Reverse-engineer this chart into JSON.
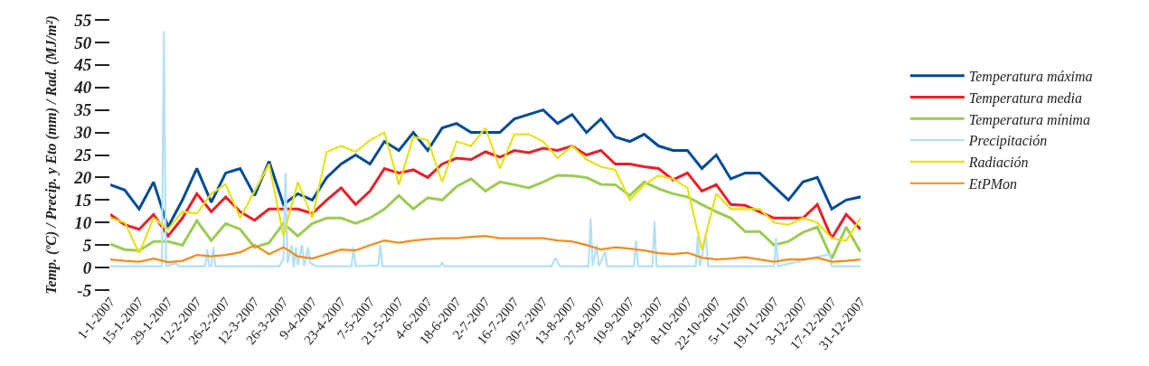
{
  "chart_data": {
    "type": "line",
    "ylabel": "Temp. (ºC) / Precip. y Eto (mm) / Rad. (MJ/m²)",
    "x": [
      "2007-01-01",
      "2007-01-08",
      "2007-01-15",
      "2007-01-22",
      "2007-01-29",
      "2007-02-05",
      "2007-02-12",
      "2007-02-19",
      "2007-02-26",
      "2007-03-05",
      "2007-03-12",
      "2007-03-19",
      "2007-03-26",
      "2007-04-02",
      "2007-04-09",
      "2007-04-16",
      "2007-04-23",
      "2007-04-30",
      "2007-05-07",
      "2007-05-14",
      "2007-05-21",
      "2007-05-28",
      "2007-06-04",
      "2007-06-11",
      "2007-06-18",
      "2007-06-25",
      "2007-07-02",
      "2007-07-09",
      "2007-07-16",
      "2007-07-23",
      "2007-07-30",
      "2007-08-06",
      "2007-08-13",
      "2007-08-20",
      "2007-08-27",
      "2007-09-03",
      "2007-09-10",
      "2007-09-17",
      "2007-09-24",
      "2007-10-01",
      "2007-10-08",
      "2007-10-15",
      "2007-10-22",
      "2007-10-29",
      "2007-11-05",
      "2007-11-12",
      "2007-11-19",
      "2007-11-26",
      "2007-12-03",
      "2007-12-10",
      "2007-12-17",
      "2007-12-24",
      "2007-12-31"
    ],
    "series": [
      {
        "name": "Temperatura máxima",
        "color": "#004b93",
        "values": [
          18.4,
          17.2,
          13,
          19,
          9,
          15,
          22,
          14.5,
          21,
          22,
          16,
          23.6,
          14,
          16.4,
          15,
          20,
          23,
          25,
          23,
          28,
          26,
          30,
          26,
          31,
          32,
          30,
          30,
          30,
          33,
          34,
          35,
          32,
          34,
          30,
          33,
          29,
          28,
          29.6,
          27,
          26,
          26,
          22,
          25,
          19.7,
          21,
          21,
          18,
          15,
          19,
          20,
          13,
          15,
          15.7
        ]
      },
      {
        "name": "Temperatura media",
        "color": "#e8202a",
        "values": [
          11.8,
          9.5,
          8.5,
          11.8,
          7,
          11,
          16.4,
          12.4,
          15.7,
          12.4,
          10.5,
          13,
          13,
          13,
          12,
          15,
          17.7,
          14,
          17,
          22,
          21,
          21.7,
          20,
          23,
          24.3,
          24,
          25.7,
          24.5,
          26,
          25.5,
          26.5,
          26,
          27,
          25,
          26,
          23,
          23,
          22.4,
          22,
          19.5,
          21,
          17,
          18.4,
          14,
          13.8,
          12.4,
          11,
          11,
          11,
          14,
          6.5,
          11.8,
          8.5
        ]
      },
      {
        "name": "Temperatura mínima",
        "color": "#9ccb52",
        "values": [
          5.2,
          4,
          3.8,
          5.8,
          5.8,
          5,
          10.4,
          6,
          9.8,
          8.5,
          4.5,
          5.5,
          9.8,
          7,
          9.8,
          11,
          11,
          9.8,
          11,
          13,
          16,
          13,
          15.5,
          15,
          18,
          19.7,
          17,
          19,
          18.4,
          17.7,
          19,
          20.5,
          20.4,
          20,
          18.5,
          18.4,
          16,
          19,
          17.5,
          16.4,
          15.7,
          14,
          12.4,
          11,
          8,
          8,
          5,
          5.8,
          7.8,
          9,
          2,
          9,
          3.5
        ]
      },
      {
        "name": "Precipitación",
        "color": "#b3e1f7",
        "x": [
          "2007-01-01",
          "2007-01-21",
          "2007-01-26",
          "2007-01-27",
          "2007-01-28",
          "2007-02-02",
          "2007-02-03",
          "2007-02-16",
          "2007-02-17",
          "2007-02-18",
          "2007-02-19",
          "2007-02-20",
          "2007-02-21",
          "2007-03-24",
          "2007-03-26",
          "2007-03-27",
          "2007-03-28",
          "2007-03-30",
          "2007-03-31",
          "2007-04-01",
          "2007-04-02",
          "2007-04-04",
          "2007-04-05",
          "2007-04-07",
          "2007-04-08",
          "2007-04-11",
          "2007-04-28",
          "2007-04-29",
          "2007-04-30",
          "2007-05-11",
          "2007-05-12",
          "2007-05-13",
          "2007-06-10",
          "2007-06-11",
          "2007-06-12",
          "2007-08-03",
          "2007-08-05",
          "2007-08-07",
          "2007-08-21",
          "2007-08-22",
          "2007-08-23",
          "2007-08-25",
          "2007-08-26",
          "2007-08-29",
          "2007-08-30",
          "2007-09-12",
          "2007-09-13",
          "2007-09-14",
          "2007-09-21",
          "2007-09-22",
          "2007-09-23",
          "2007-10-12",
          "2007-10-13",
          "2007-10-14",
          "2007-10-17",
          "2007-10-18",
          "2007-11-19",
          "2007-11-20",
          "2007-11-21",
          "2007-12-16",
          "2007-12-17",
          "2007-12-31"
        ],
        "values": [
          0.3,
          0.3,
          0.3,
          52.5,
          0.3,
          1,
          0.3,
          0.3,
          4,
          0.3,
          0.3,
          4.5,
          0.3,
          0.3,
          2,
          21,
          1,
          5,
          0,
          4.5,
          0.5,
          5,
          0.3,
          4.5,
          1,
          0.3,
          0.3,
          4.5,
          0.3,
          0.5,
          5,
          0.3,
          0.3,
          1,
          0.3,
          0.3,
          2.2,
          0.3,
          0.3,
          11,
          0.3,
          5,
          0.3,
          3.5,
          0.3,
          0.3,
          6,
          0.3,
          0.3,
          10.4,
          0.3,
          0.3,
          7,
          0.3,
          7,
          0.3,
          0.3,
          6.5,
          0.3,
          3,
          0.3,
          0.3
        ]
      },
      {
        "name": "Radiación",
        "color": "#e6e21a",
        "values": [
          11,
          10,
          3.2,
          11,
          8.5,
          12.4,
          12,
          16.4,
          18.5,
          11,
          17,
          23,
          7.1,
          19,
          11,
          25.7,
          27,
          25.7,
          28.3,
          30,
          18.4,
          29,
          28.3,
          19,
          28,
          27,
          31,
          22,
          29.6,
          29.6,
          28,
          24.3,
          27,
          24,
          22.4,
          21.7,
          15,
          18.4,
          20.4,
          19.7,
          17.7,
          4,
          16.4,
          13,
          13,
          13,
          10,
          9.5,
          11,
          10,
          6.5,
          6,
          11
        ]
      },
      {
        "name": "EtPMon",
        "color": "#f28c1c",
        "values": [
          1.8,
          1.5,
          1.3,
          2,
          1.2,
          1.5,
          2.8,
          2.5,
          2.8,
          3.4,
          5,
          3,
          4.5,
          2.5,
          2,
          3,
          4,
          3.8,
          5,
          6,
          5.5,
          6,
          6.3,
          6.5,
          6.5,
          6.8,
          7,
          6.5,
          6.5,
          6.5,
          6.5,
          6,
          5.8,
          5,
          4,
          4.5,
          4.2,
          3.8,
          3.2,
          3,
          3.3,
          2.2,
          1.8,
          2,
          2.3,
          1.8,
          1.3,
          1.8,
          1.8,
          2.2,
          1.3,
          1.5,
          1.8
        ]
      }
    ],
    "xlim": [
      "2007-01-01",
      "2007-12-31"
    ],
    "xticks": [
      {
        "value": "2007-01-01",
        "label": "1-1-2007"
      },
      {
        "value": "2007-01-15",
        "label": "15-1-2007"
      },
      {
        "value": "2007-01-29",
        "label": "29-1-2007"
      },
      {
        "value": "2007-02-12",
        "label": "12-2-2007"
      },
      {
        "value": "2007-02-26",
        "label": "26-2-2007"
      },
      {
        "value": "2007-03-12",
        "label": "12-3-2007"
      },
      {
        "value": "2007-03-26",
        "label": "26-3-2007"
      },
      {
        "value": "2007-04-09",
        "label": "9-4-2007"
      },
      {
        "value": "2007-04-23",
        "label": "23-4-2007"
      },
      {
        "value": "2007-05-07",
        "label": "7-5-2007"
      },
      {
        "value": "2007-05-21",
        "label": "21-5-2007"
      },
      {
        "value": "2007-06-04",
        "label": "4-6-2007"
      },
      {
        "value": "2007-06-18",
        "label": "18-6-2007"
      },
      {
        "value": "2007-07-02",
        "label": "2-7-2007"
      },
      {
        "value": "2007-07-16",
        "label": "16-7-2007"
      },
      {
        "value": "2007-07-30",
        "label": "30-7-2007"
      },
      {
        "value": "2007-08-13",
        "label": "13-8-2007"
      },
      {
        "value": "2007-08-27",
        "label": "27-8-2007"
      },
      {
        "value": "2007-09-10",
        "label": "10-9-2007"
      },
      {
        "value": "2007-09-24",
        "label": "24-9-2007"
      },
      {
        "value": "2007-10-08",
        "label": "8-10-2007"
      },
      {
        "value": "2007-10-22",
        "label": "22-10-2007"
      },
      {
        "value": "2007-11-05",
        "label": "5-11-2007"
      },
      {
        "value": "2007-11-19",
        "label": "19-11-2007"
      },
      {
        "value": "2007-12-03",
        "label": "3-12-2007"
      },
      {
        "value": "2007-12-17",
        "label": "17-12-2007"
      },
      {
        "value": "2007-12-31",
        "label": "31-12-2007"
      }
    ],
    "ylim": [
      -5,
      55
    ],
    "yticks": [
      -5,
      0,
      5,
      10,
      15,
      20,
      25,
      30,
      35,
      40,
      45,
      50,
      55
    ],
    "legend": "right",
    "marker": "none",
    "line_style": "solid"
  }
}
